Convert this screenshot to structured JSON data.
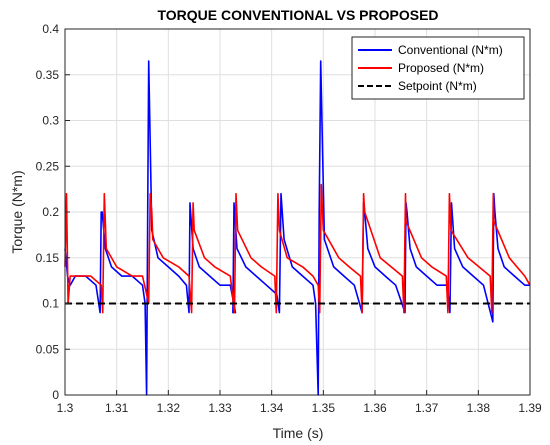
{
  "chart_data": {
    "type": "line",
    "title": "TORQUE CONVENTIONAL VS PROPOSED",
    "xlabel": "Time (s)",
    "ylabel": "Torque (N*m)",
    "xlim": [
      1.3,
      1.39
    ],
    "ylim": [
      0,
      0.4
    ],
    "xticks": [
      1.3,
      1.31,
      1.32,
      1.33,
      1.34,
      1.35,
      1.36,
      1.37,
      1.38,
      1.39
    ],
    "xtick_labels": [
      "1.3",
      "1.31",
      "1.32",
      "1.33",
      "1.34",
      "1.35",
      "1.36",
      "1.37",
      "1.38",
      "1.39"
    ],
    "yticks": [
      0,
      0.05,
      0.1,
      0.15,
      0.2,
      0.25,
      0.3,
      0.35,
      0.4
    ],
    "ytick_labels": [
      "0",
      "0.05",
      "0.1",
      "0.15",
      "0.2",
      "0.25",
      "0.3",
      "0.35",
      "0.4"
    ],
    "grid": true,
    "legend_position": "top-right",
    "series": [
      {
        "name": "Conventional (N*m)",
        "color": "#0000ff",
        "style": "solid",
        "x": [
          1.3,
          1.3005,
          1.301,
          1.302,
          1.304,
          1.306,
          1.3068,
          1.307,
          1.3072,
          1.3078,
          1.309,
          1.311,
          1.313,
          1.315,
          1.3155,
          1.3158,
          1.316,
          1.3162,
          1.3168,
          1.318,
          1.32,
          1.322,
          1.3235,
          1.324,
          1.3242,
          1.3248,
          1.326,
          1.328,
          1.33,
          1.332,
          1.333,
          1.3325,
          1.3327,
          1.3333,
          1.335,
          1.337,
          1.339,
          1.341,
          1.341,
          1.3415,
          1.3418,
          1.3424,
          1.344,
          1.346,
          1.348,
          1.3485,
          1.349,
          1.3492,
          1.3495,
          1.3502,
          1.352,
          1.354,
          1.356,
          1.3575,
          1.3578,
          1.358,
          1.3586,
          1.36,
          1.362,
          1.364,
          1.3658,
          1.366,
          1.3662,
          1.3668,
          1.368,
          1.37,
          1.372,
          1.374,
          1.3745,
          1.3748,
          1.3754,
          1.377,
          1.379,
          1.381,
          1.3828,
          1.383,
          1.3832,
          1.3838,
          1.385,
          1.387,
          1.389,
          1.39
        ],
        "y": [
          0.16,
          0.13,
          0.12,
          0.13,
          0.13,
          0.12,
          0.09,
          0.2,
          0.2,
          0.16,
          0.14,
          0.13,
          0.13,
          0.12,
          0.1,
          0.0,
          0.2,
          0.365,
          0.18,
          0.15,
          0.14,
          0.13,
          0.12,
          0.09,
          0.21,
          0.16,
          0.14,
          0.13,
          0.12,
          0.12,
          0.09,
          0.09,
          0.21,
          0.16,
          0.14,
          0.13,
          0.12,
          0.11,
          0.11,
          0.09,
          0.22,
          0.17,
          0.14,
          0.13,
          0.12,
          0.1,
          0.0,
          0.2,
          0.365,
          0.17,
          0.14,
          0.13,
          0.12,
          0.09,
          0.21,
          0.2,
          0.16,
          0.14,
          0.13,
          0.12,
          0.09,
          0.21,
          0.2,
          0.16,
          0.14,
          0.13,
          0.12,
          0.12,
          0.09,
          0.21,
          0.16,
          0.14,
          0.13,
          0.12,
          0.08,
          0.22,
          0.2,
          0.16,
          0.14,
          0.13,
          0.12,
          0.12
        ]
      },
      {
        "name": "Proposed (N*m)",
        "color": "#ff0000",
        "style": "solid",
        "x": [
          1.3,
          1.3003,
          1.3006,
          1.301,
          1.303,
          1.305,
          1.307,
          1.3073,
          1.3076,
          1.308,
          1.31,
          1.313,
          1.315,
          1.3162,
          1.3165,
          1.3168,
          1.317,
          1.319,
          1.322,
          1.324,
          1.3245,
          1.3248,
          1.325,
          1.327,
          1.329,
          1.332,
          1.3328,
          1.3331,
          1.3334,
          1.336,
          1.338,
          1.3406,
          1.3409,
          1.3412,
          1.3415,
          1.343,
          1.346,
          1.348,
          1.349,
          1.3493,
          1.3496,
          1.35,
          1.353,
          1.355,
          1.3572,
          1.3575,
          1.3578,
          1.358,
          1.361,
          1.3653,
          1.3656,
          1.3659,
          1.366,
          1.369,
          1.371,
          1.3738,
          1.3741,
          1.3744,
          1.3747,
          1.378,
          1.3823,
          1.3826,
          1.3829,
          1.383,
          1.386,
          1.389,
          1.39
        ],
        "y": [
          0.14,
          0.22,
          0.1,
          0.13,
          0.13,
          0.13,
          0.12,
          0.09,
          0.22,
          0.16,
          0.14,
          0.13,
          0.13,
          0.1,
          0.22,
          0.2,
          0.17,
          0.15,
          0.14,
          0.13,
          0.09,
          0.21,
          0.18,
          0.15,
          0.14,
          0.13,
          0.09,
          0.22,
          0.18,
          0.15,
          0.14,
          0.13,
          0.09,
          0.22,
          0.18,
          0.15,
          0.14,
          0.13,
          0.12,
          0.09,
          0.23,
          0.18,
          0.15,
          0.14,
          0.13,
          0.09,
          0.22,
          0.2,
          0.15,
          0.13,
          0.09,
          0.22,
          0.19,
          0.15,
          0.14,
          0.13,
          0.09,
          0.22,
          0.18,
          0.15,
          0.13,
          0.09,
          0.22,
          0.19,
          0.15,
          0.13,
          0.12
        ]
      },
      {
        "name": "Setpoint (N*m)",
        "color": "#000000",
        "style": "dashed",
        "x": [
          1.3,
          1.39
        ],
        "y": [
          0.1,
          0.1
        ]
      }
    ]
  }
}
